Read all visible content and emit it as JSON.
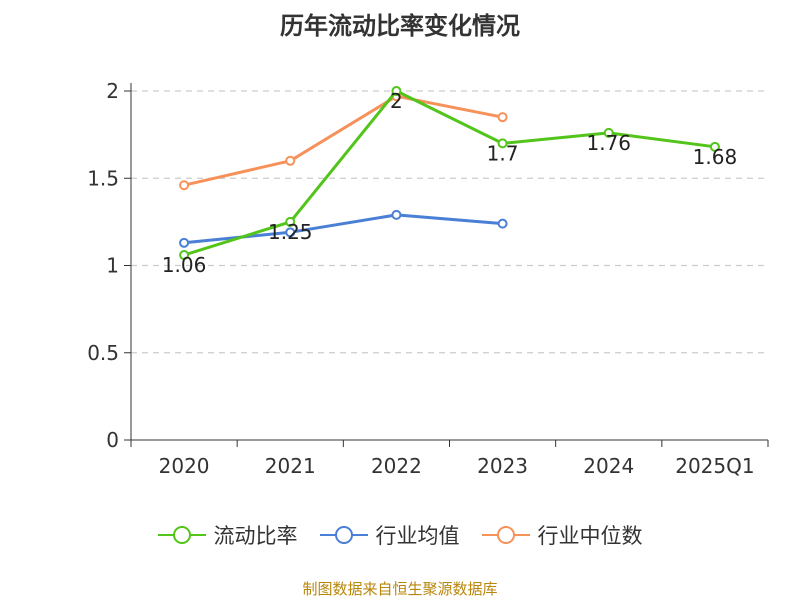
{
  "chart_data": {
    "type": "line",
    "title": "历年流动比率变化情况",
    "categories": [
      "2020",
      "2021",
      "2022",
      "2023",
      "2024",
      "2025Q1"
    ],
    "y_ticks": [
      "0",
      "0.5",
      "1",
      "1.5",
      "2"
    ],
    "ylim": [
      0,
      2
    ],
    "grid": true,
    "legend_position": "bottom",
    "series": [
      {
        "name": "流动比率",
        "color": "#52c41a",
        "values": [
          1.06,
          1.25,
          2,
          1.7,
          1.76,
          1.68
        ],
        "labels": [
          "1.06",
          "1.25",
          "2",
          "1.7",
          "1.76",
          "1.68"
        ],
        "show_labels": true
      },
      {
        "name": "行业均值",
        "color": "#4a7fd6",
        "values": [
          1.13,
          1.19,
          1.29,
          1.24,
          null,
          null
        ],
        "show_labels": false
      },
      {
        "name": "行业中位数",
        "color": "#f7915a",
        "values": [
          1.46,
          1.6,
          1.97,
          1.85,
          null,
          null
        ],
        "show_labels": false
      }
    ]
  },
  "source": "制图数据来自恒生聚源数据库"
}
